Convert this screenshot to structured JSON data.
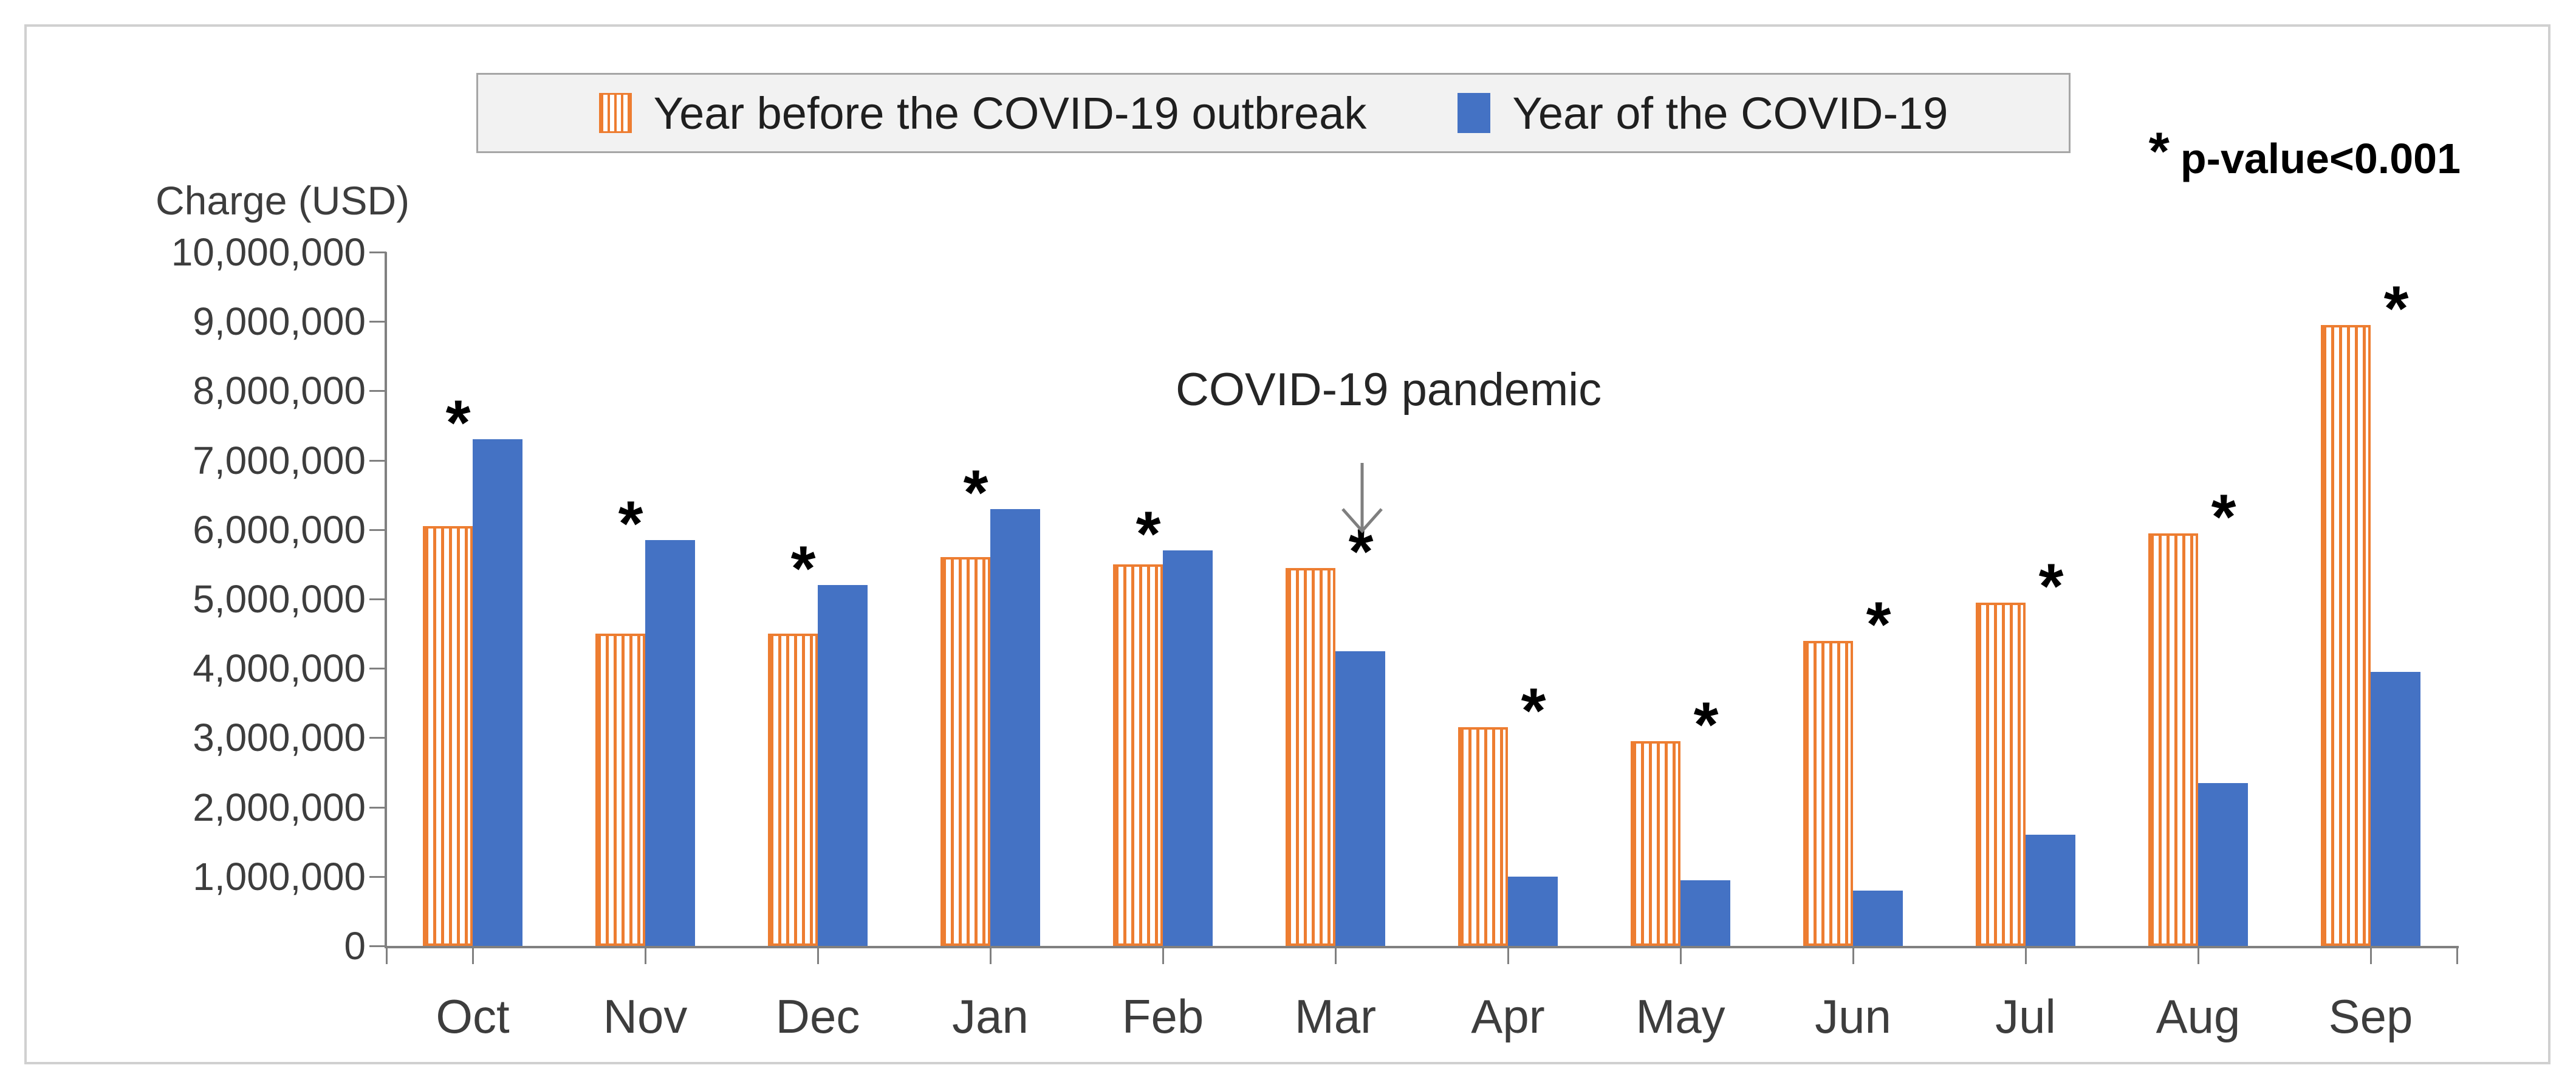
{
  "legend": {
    "items": [
      {
        "label": "Year before the COVID-19 outbreak",
        "swatch": "striped-orange"
      },
      {
        "label": "Year of the COVID-19",
        "swatch": "solid-blue"
      }
    ]
  },
  "note": {
    "marker": "*",
    "text": "p-value<0.001"
  },
  "annotation": {
    "label": "COVID-19 pandemic",
    "points_to": "Mar"
  },
  "y_axis": {
    "title": "Charge (USD)",
    "tick_labels": [
      "10,000,000",
      "9,000,000",
      "8,000,000",
      "7,000,000",
      "6,000,000",
      "5,000,000",
      "4,000,000",
      "3,000,000",
      "2,000,000",
      "1,000,000",
      "0"
    ]
  },
  "colors": {
    "before_orange": "#ED7D31",
    "covid_blue": "#4472C4",
    "axis_gray": "#808080",
    "text_dark": "#3d3d3d",
    "figure_border": "#d0d0d0",
    "legend_bg": "#f2f2f2",
    "legend_border": "#a6a6a6"
  },
  "chart_data": {
    "type": "bar",
    "title": "",
    "ylabel": "Charge (USD)",
    "xlabel": "",
    "ylim": [
      0,
      10000000
    ],
    "ytick_step": 1000000,
    "grid": false,
    "legend_position": "top-center",
    "categories": [
      "Oct",
      "Nov",
      "Dec",
      "Jan",
      "Feb",
      "Mar",
      "Apr",
      "May",
      "Jun",
      "Jul",
      "Aug",
      "Sep"
    ],
    "series": [
      {
        "name": "Year before the COVID-19 outbreak",
        "pattern": "vertical-stripes",
        "color": "#ED7D31",
        "values": [
          6050000,
          4500000,
          4500000,
          5600000,
          5500000,
          5450000,
          3150000,
          2950000,
          4400000,
          4950000,
          5950000,
          8950000
        ]
      },
      {
        "name": "Year of the COVID-19",
        "pattern": "solid",
        "color": "#4472C4",
        "values": [
          7300000,
          5850000,
          5200000,
          6300000,
          5700000,
          4250000,
          1000000,
          950000,
          800000,
          1600000,
          2350000,
          3950000
        ]
      }
    ],
    "significance_markers": [
      "*",
      "*",
      "*",
      "*",
      "*",
      "*",
      "*",
      "*",
      "*",
      "*",
      "*",
      "*"
    ],
    "significance_note": "* p-value<0.001",
    "annotation": {
      "text": "COVID-19 pandemic",
      "arrow": "down",
      "near_category": "Mar"
    }
  }
}
